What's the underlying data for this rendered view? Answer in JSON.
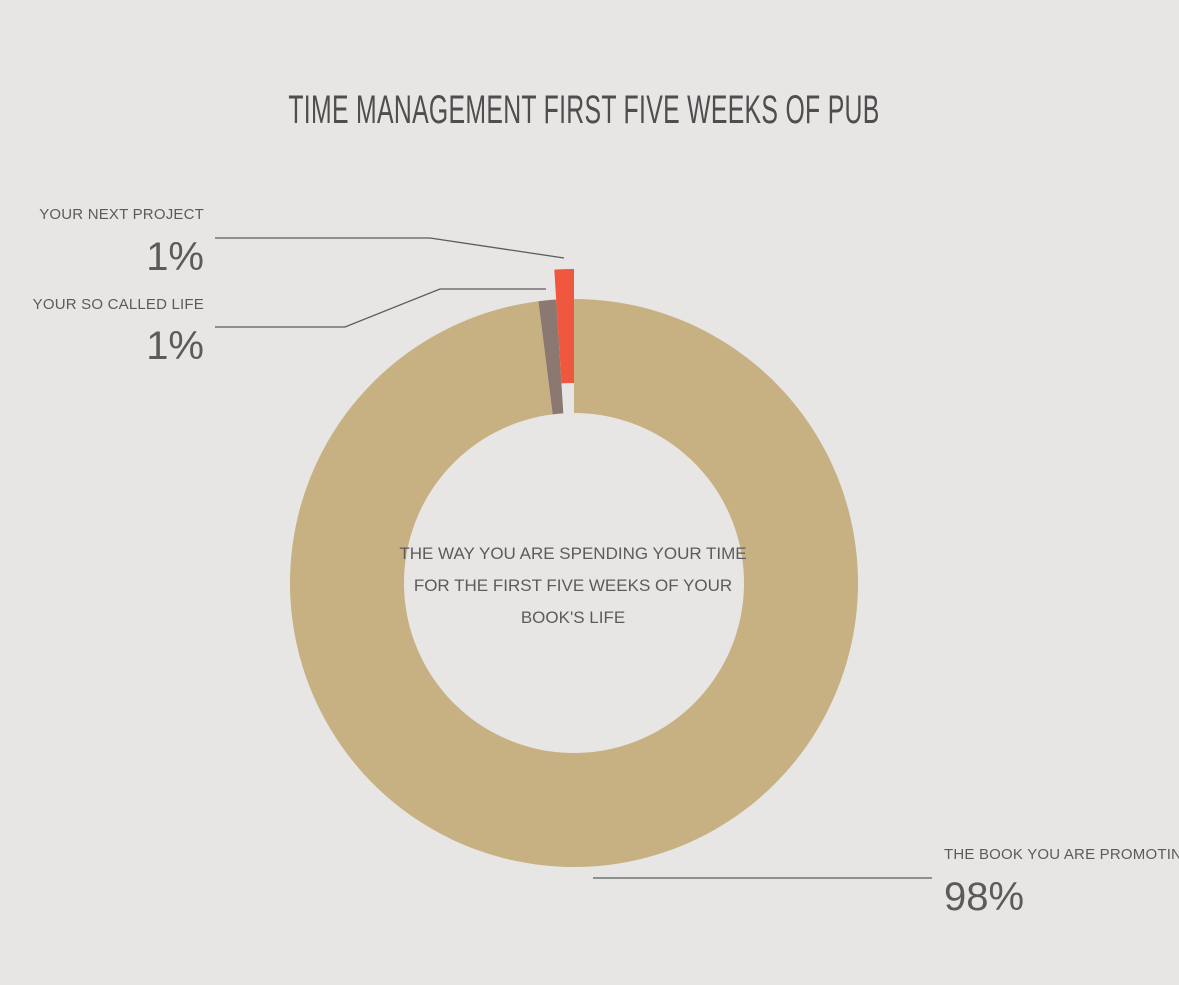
{
  "chart_data": {
    "type": "pie",
    "title": "TIME MANAGEMENT FIRST FIVE WEEKS OF PUB",
    "center_text": [
      "THE WAY YOU ARE SPENDING YOUR TIME",
      "FOR THE FIRST FIVE WEEKS OF YOUR",
      "BOOK'S LIFE"
    ],
    "slices": [
      {
        "label": "THE BOOK YOU ARE PROMOTING",
        "value": 98,
        "value_label": "98%",
        "color": "#c7b182"
      },
      {
        "label": "YOUR SO CALLED LIFE",
        "value": 1,
        "value_label": "1%",
        "color": "#8b7870"
      },
      {
        "label": "YOUR NEXT PROJECT",
        "value": 1,
        "value_label": "1%",
        "color": "#ef583f"
      }
    ]
  }
}
